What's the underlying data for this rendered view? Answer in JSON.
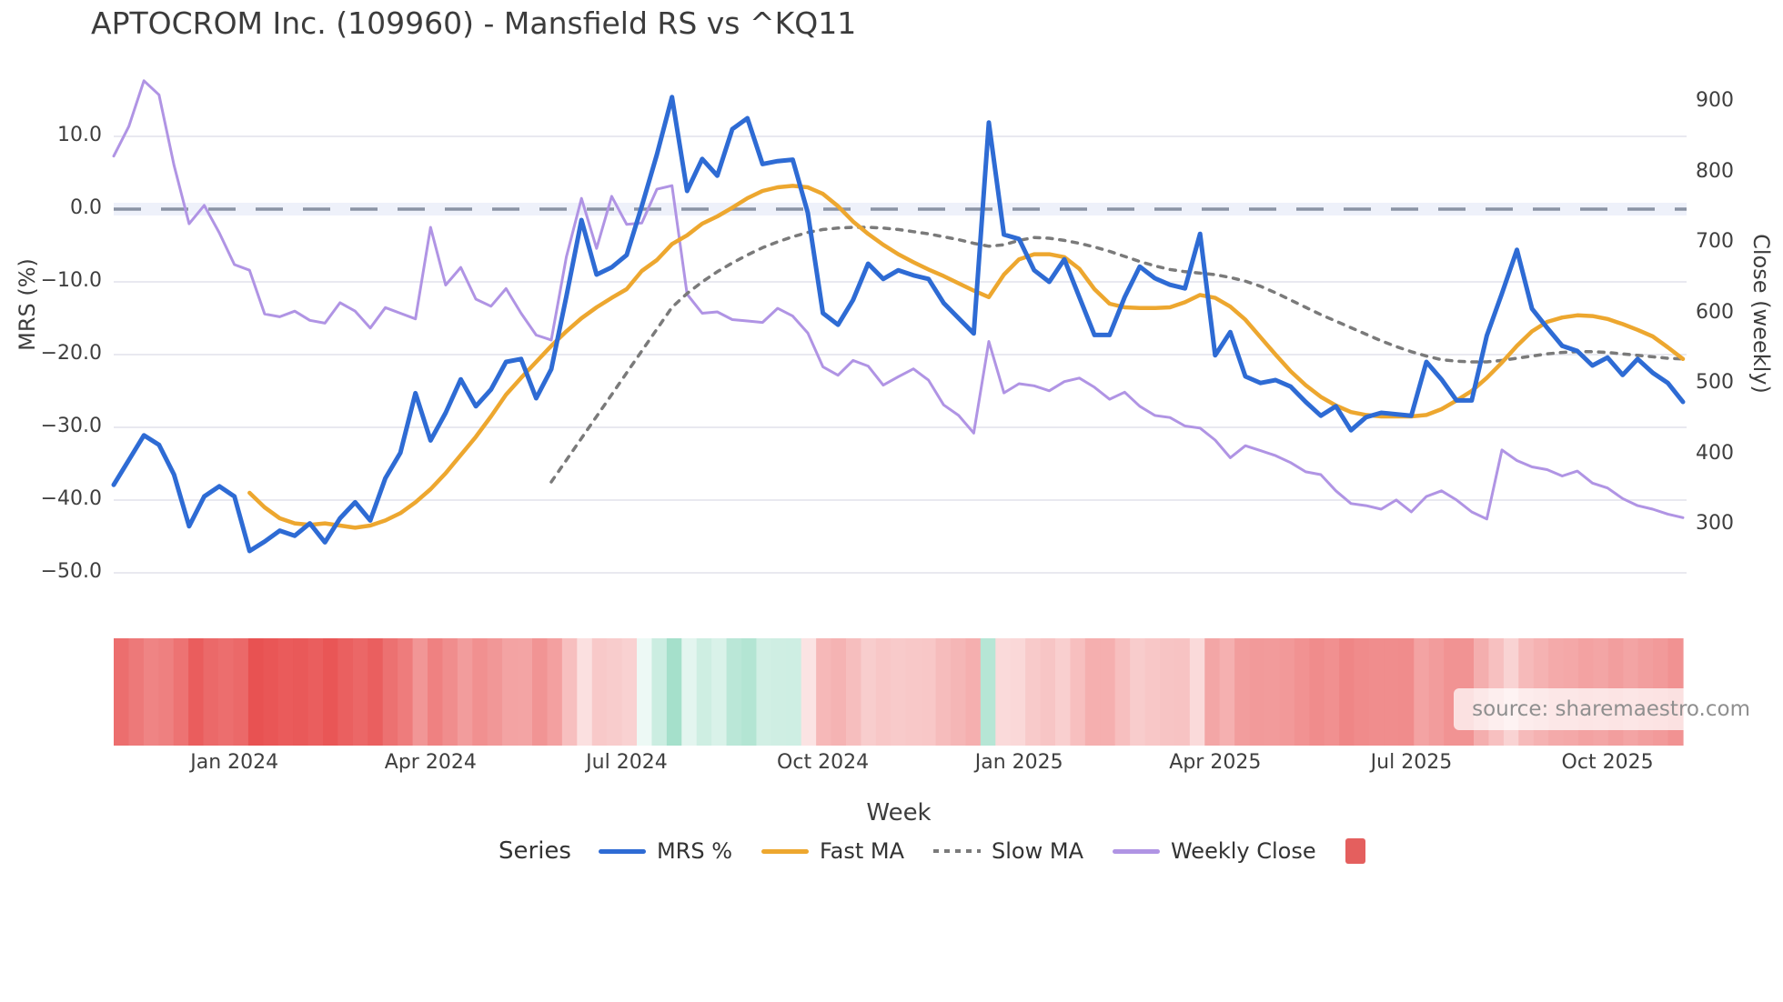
{
  "title": "APTOCROM Inc. (109960) - Mansfield RS vs ^KQ11",
  "watermark": "source: sharemaestro.com",
  "legend": {
    "title": "Series",
    "entries": [
      {
        "label": "MRS %",
        "style": "line",
        "color": "#2e6bd4"
      },
      {
        "label": "Fast MA",
        "style": "line",
        "color": "#eda72f"
      },
      {
        "label": "Slow MA",
        "style": "dotted",
        "color": "#7a7a7a"
      },
      {
        "label": "Weekly Close",
        "style": "line",
        "color": "#b094e4"
      },
      {
        "label": "",
        "style": "square",
        "color": "#e45f5e"
      }
    ]
  },
  "chart_data": {
    "type": "line",
    "title": "APTOCROM Inc. (109960) - Mansfield RS vs ^KQ11",
    "x_axis": {
      "label": "Week",
      "weeks_total": 105,
      "ticks": [
        {
          "label": "Jan 2024",
          "week": 8
        },
        {
          "label": "Apr 2024",
          "week": 21
        },
        {
          "label": "Jul 2024",
          "week": 34
        },
        {
          "label": "Oct 2024",
          "week": 47
        },
        {
          "label": "Jan 2025",
          "week": 60
        },
        {
          "label": "Apr 2025",
          "week": 73
        },
        {
          "label": "Jul 2025",
          "week": 86
        },
        {
          "label": "Oct 2025",
          "week": 99
        }
      ]
    },
    "y_left": {
      "label": "MRS (%)",
      "ticks": [
        {
          "label": "10.0",
          "value": 10
        },
        {
          "label": "0.0",
          "value": 0
        },
        {
          "label": "−10.0",
          "value": -10
        },
        {
          "label": "−20.0",
          "value": -20
        },
        {
          "label": "−30.0",
          "value": -30
        },
        {
          "label": "−40.0",
          "value": -40
        },
        {
          "label": "−50.0",
          "value": -50
        }
      ]
    },
    "y_right": {
      "label": "Close (weekly)",
      "ticks": [
        {
          "label": "900",
          "value": 900
        },
        {
          "label": "800",
          "value": 800
        },
        {
          "label": "700",
          "value": 700
        },
        {
          "label": "600",
          "value": 600
        },
        {
          "label": "500",
          "value": 500
        },
        {
          "label": "400",
          "value": 400
        },
        {
          "label": "300",
          "value": 300
        }
      ]
    },
    "zero_line": {
      "value": 0,
      "style": "dashed",
      "color": "#8a93a4",
      "band_color": "#eef1fa"
    },
    "grid_color": "#e9e9f0",
    "series": [
      {
        "name": "MRS %",
        "axis": "left",
        "color": "#2e6bd4",
        "width": 5,
        "start_week": 0,
        "values": [
          -37.9,
          -34.5,
          -31.1,
          -32.4,
          -36.5,
          -43.6,
          -39.5,
          -38.1,
          -39.5,
          -47,
          -45.7,
          -44.2,
          -44.9,
          -43.2,
          -45.8,
          -42.5,
          -40.3,
          -42.8,
          -37,
          -33.5,
          -25.3,
          -31.8,
          -28,
          -23.4,
          -27.1,
          -24.8,
          -21,
          -20.6,
          -26,
          -22,
          -12,
          -1.5,
          -9,
          -8,
          -6.3,
          0.4,
          7.5,
          15.4,
          2.5,
          6.9,
          4.6,
          11,
          12.5,
          6.2,
          6.6,
          6.8,
          -0.5,
          -14.3,
          -15.9,
          -12.5,
          -7.5,
          -9.6,
          -8.4,
          -9.1,
          -9.6,
          -12.9,
          -15,
          -17.1,
          11.9,
          -3.5,
          -4.1,
          -8.4,
          -10,
          -6.9,
          -12.1,
          -17.3,
          -17.3,
          -12.1,
          -7.9,
          -9.5,
          -10.4,
          -10.9,
          -3.4,
          -20.1,
          -16.9,
          -23,
          -23.9,
          -23.5,
          -24.4,
          -26.5,
          -28.4,
          -27.1,
          -30.4,
          -28.6,
          -28,
          -28.2,
          -28.4,
          -21,
          -23.4,
          -26.3,
          -26.3,
          -17.4,
          -11.6,
          -5.6,
          -13.7,
          -16.3,
          -18.8,
          -19.5,
          -21.5,
          -20.4,
          -22.8,
          -20.6,
          -22.5,
          -23.9,
          -26.5
        ]
      },
      {
        "name": "Fast MA",
        "axis": "left",
        "color": "#eda72f",
        "width": 4.5,
        "start_week": 9,
        "values": [
          -39,
          -41,
          -42.5,
          -43.2,
          -43.4,
          -43.2,
          -43.5,
          -43.8,
          -43.5,
          -42.8,
          -41.8,
          -40.3,
          -38.5,
          -36.3,
          -33.8,
          -31.3,
          -28.5,
          -25.5,
          -23.2,
          -21,
          -18.8,
          -16.8,
          -15,
          -13.5,
          -12.2,
          -11,
          -8.5,
          -7,
          -4.8,
          -3.6,
          -2,
          -1,
          0.2,
          1.5,
          2.5,
          3,
          3.2,
          3,
          2.1,
          0.4,
          -1.7,
          -3.4,
          -4.9,
          -6.2,
          -7.3,
          -8.3,
          -9.2,
          -10.2,
          -11.2,
          -12.1,
          -9,
          -6.9,
          -6.2,
          -6.2,
          -6.6,
          -8.2,
          -11,
          -13,
          -13.5,
          -13.6,
          -13.6,
          -13.5,
          -12.8,
          -11.8,
          -12.2,
          -13.4,
          -15.2,
          -17.6,
          -20,
          -22.3,
          -24.2,
          -25.8,
          -27,
          -27.9,
          -28.3,
          -28.5,
          -28.5,
          -28.5,
          -28.3,
          -27.5,
          -26.3,
          -25,
          -23.2,
          -21.1,
          -18.8,
          -16.8,
          -15.5,
          -14.9,
          -14.6,
          -14.7,
          -15.1,
          -15.8,
          -16.6,
          -17.5,
          -19,
          -20.6
        ]
      },
      {
        "name": "Slow MA",
        "axis": "left",
        "color": "#7a7a7a",
        "width": 3.5,
        "dashed": true,
        "start_week": 29,
        "values": [
          -37.5,
          -34.5,
          -31.5,
          -28.5,
          -25.5,
          -22.5,
          -19.5,
          -16.5,
          -13.5,
          -11.6,
          -10,
          -8.6,
          -7.4,
          -6.3,
          -5.3,
          -4.5,
          -3.8,
          -3.2,
          -2.8,
          -2.6,
          -2.5,
          -2.5,
          -2.6,
          -2.8,
          -3.1,
          -3.4,
          -3.8,
          -4.2,
          -4.7,
          -5.1,
          -4.9,
          -4.3,
          -3.9,
          -4,
          -4.3,
          -4.7,
          -5.2,
          -5.8,
          -6.5,
          -7.2,
          -7.8,
          -8.3,
          -8.6,
          -8.8,
          -9,
          -9.4,
          -9.9,
          -10.6,
          -11.5,
          -12.5,
          -13.5,
          -14.5,
          -15.4,
          -16.3,
          -17.2,
          -18.1,
          -18.9,
          -19.6,
          -20.2,
          -20.7,
          -20.9,
          -21,
          -21,
          -20.8,
          -20.5,
          -20.2,
          -19.9,
          -19.7,
          -19.6,
          -19.6,
          -19.7,
          -19.9,
          -20.1,
          -20.3,
          -20.5,
          -20.6
        ]
      },
      {
        "name": "Weekly Close",
        "axis": "right",
        "color": "#b094e4",
        "width": 3,
        "start_week": 0,
        "values": [
          823,
          865,
          930,
          910,
          810,
          727,
          753,
          714,
          669,
          661,
          599,
          595,
          603,
          590,
          586,
          615,
          603,
          579,
          608,
          600,
          592,
          722,
          640,
          665,
          620,
          610,
          635,
          600,
          569,
          562,
          680,
          763,
          692,
          766,
          726,
          728,
          776,
          781,
          627,
          600,
          602,
          591,
          589,
          587,
          607,
          596,
          572,
          524,
          512,
          533,
          525,
          498,
          510,
          521,
          505,
          470,
          455,
          430,
          560,
          487,
          500,
          497,
          490,
          503,
          508,
          495,
          478,
          488,
          468,
          455,
          452,
          440,
          437,
          420,
          395,
          412,
          405,
          398,
          388,
          375,
          371,
          348,
          330,
          327,
          322,
          335,
          318,
          340,
          348,
          335,
          318,
          308,
          406,
          391,
          382,
          378,
          369,
          376,
          359,
          352,
          337,
          327,
          322,
          315,
          310
        ]
      }
    ],
    "heatmap": {
      "source_series": "MRS %",
      "negative_color": "#e84f4f",
      "positive_color": "#36b98a",
      "description": "weekly strip colored red for negative MRS, green for positive MRS"
    }
  }
}
